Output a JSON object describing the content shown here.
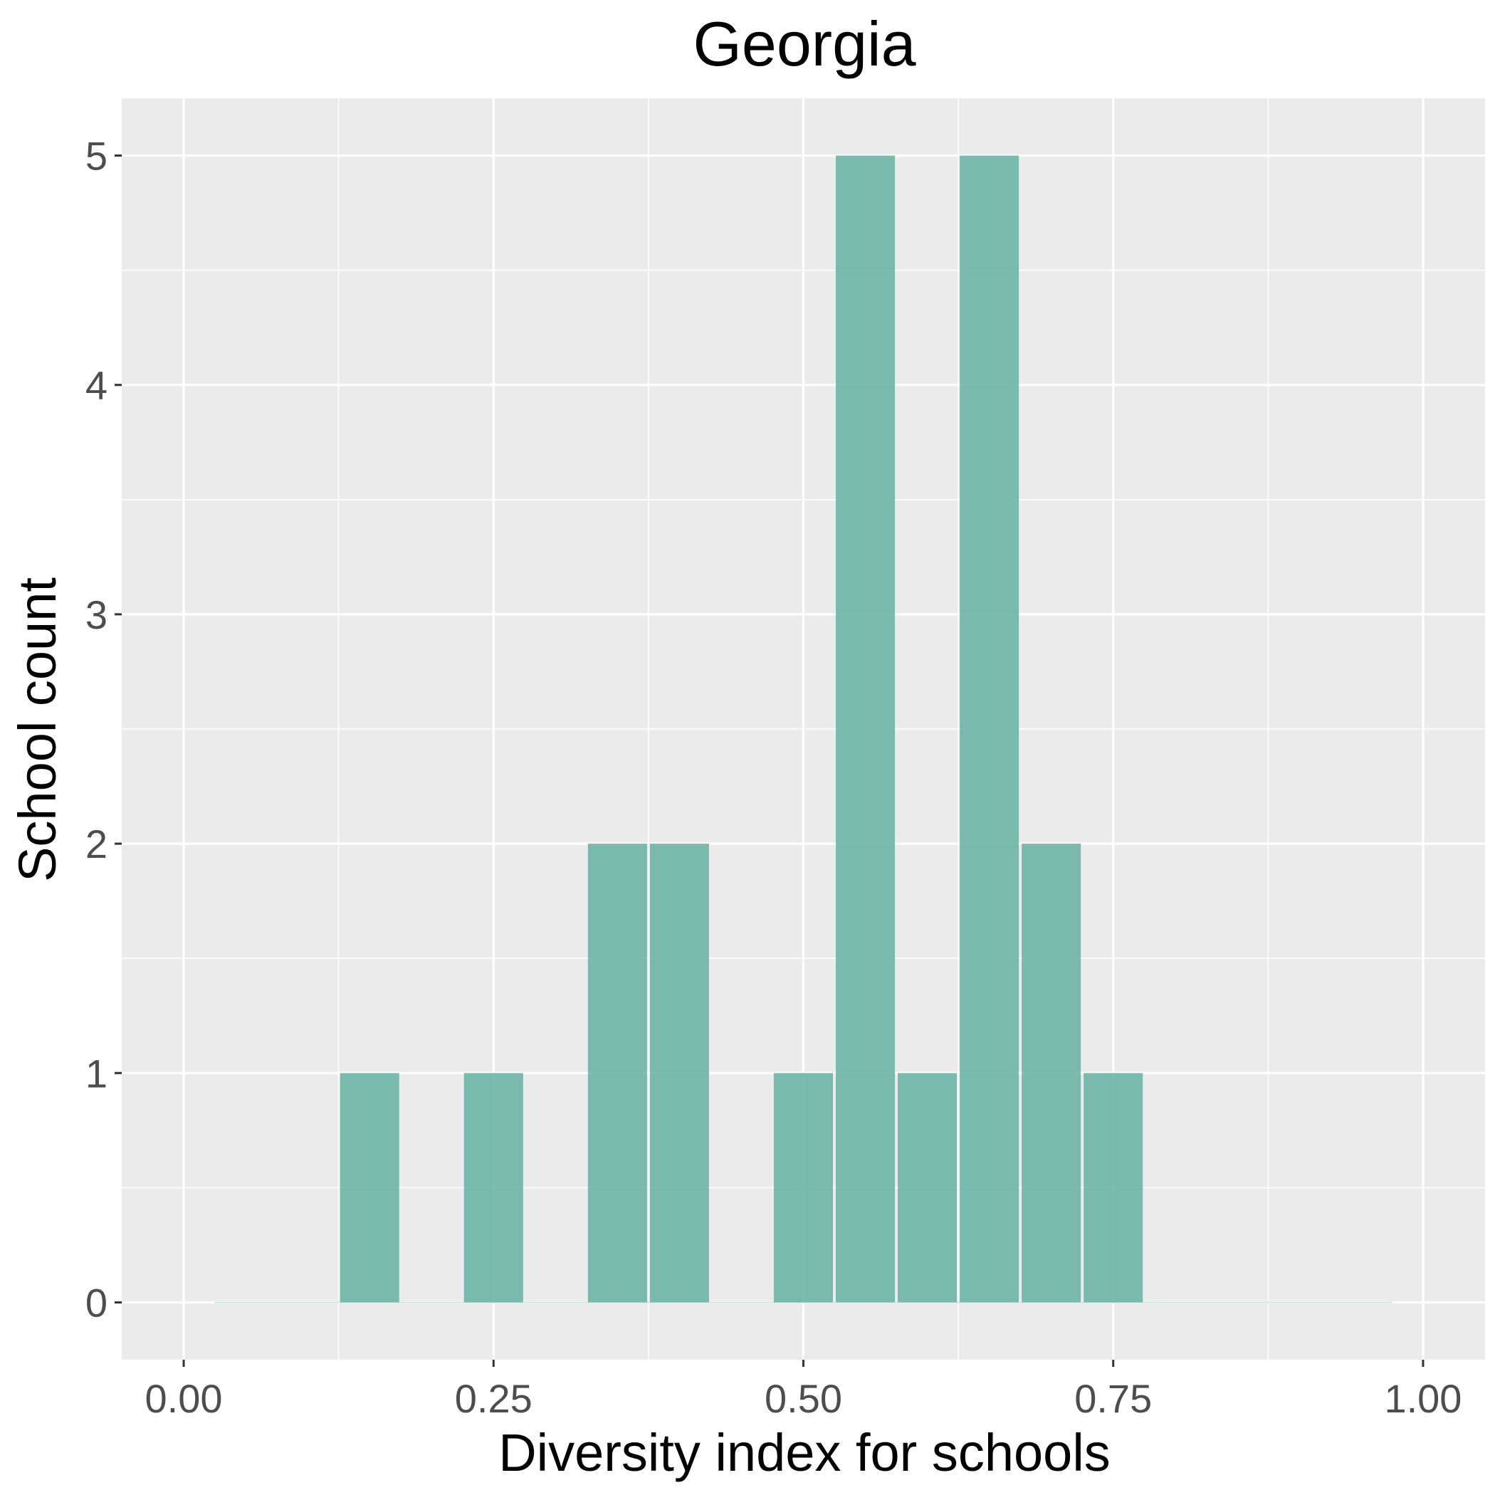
{
  "chart_data": {
    "type": "bar",
    "title": "Georgia",
    "xlabel": "Diversity index for schools",
    "ylabel": "School count",
    "bin_width": 0.05,
    "bins": [
      {
        "x": 0.15,
        "count": 1
      },
      {
        "x": 0.25,
        "count": 1
      },
      {
        "x": 0.35,
        "count": 2
      },
      {
        "x": 0.4,
        "count": 2
      },
      {
        "x": 0.5,
        "count": 1
      },
      {
        "x": 0.55,
        "count": 5
      },
      {
        "x": 0.6,
        "count": 1
      },
      {
        "x": 0.65,
        "count": 5
      },
      {
        "x": 0.7,
        "count": 2
      },
      {
        "x": 0.75,
        "count": 1
      }
    ],
    "x_ticks": [
      "0.00",
      "0.25",
      "0.50",
      "0.75",
      "1.00"
    ],
    "x_tick_values": [
      0,
      0.25,
      0.5,
      0.75,
      1.0
    ],
    "y_ticks": [
      "0",
      "1",
      "2",
      "3",
      "4",
      "5"
    ],
    "y_tick_values": [
      0,
      1,
      2,
      3,
      4,
      5
    ],
    "xlim": [
      -0.05,
      1.05
    ],
    "ylim": [
      -0.25,
      5.25
    ],
    "baseline_range": [
      0.025,
      0.975
    ],
    "grid": true,
    "colors": {
      "bar": "#66b2a2",
      "panel": "#ebebeb",
      "grid": "#ffffff"
    }
  }
}
